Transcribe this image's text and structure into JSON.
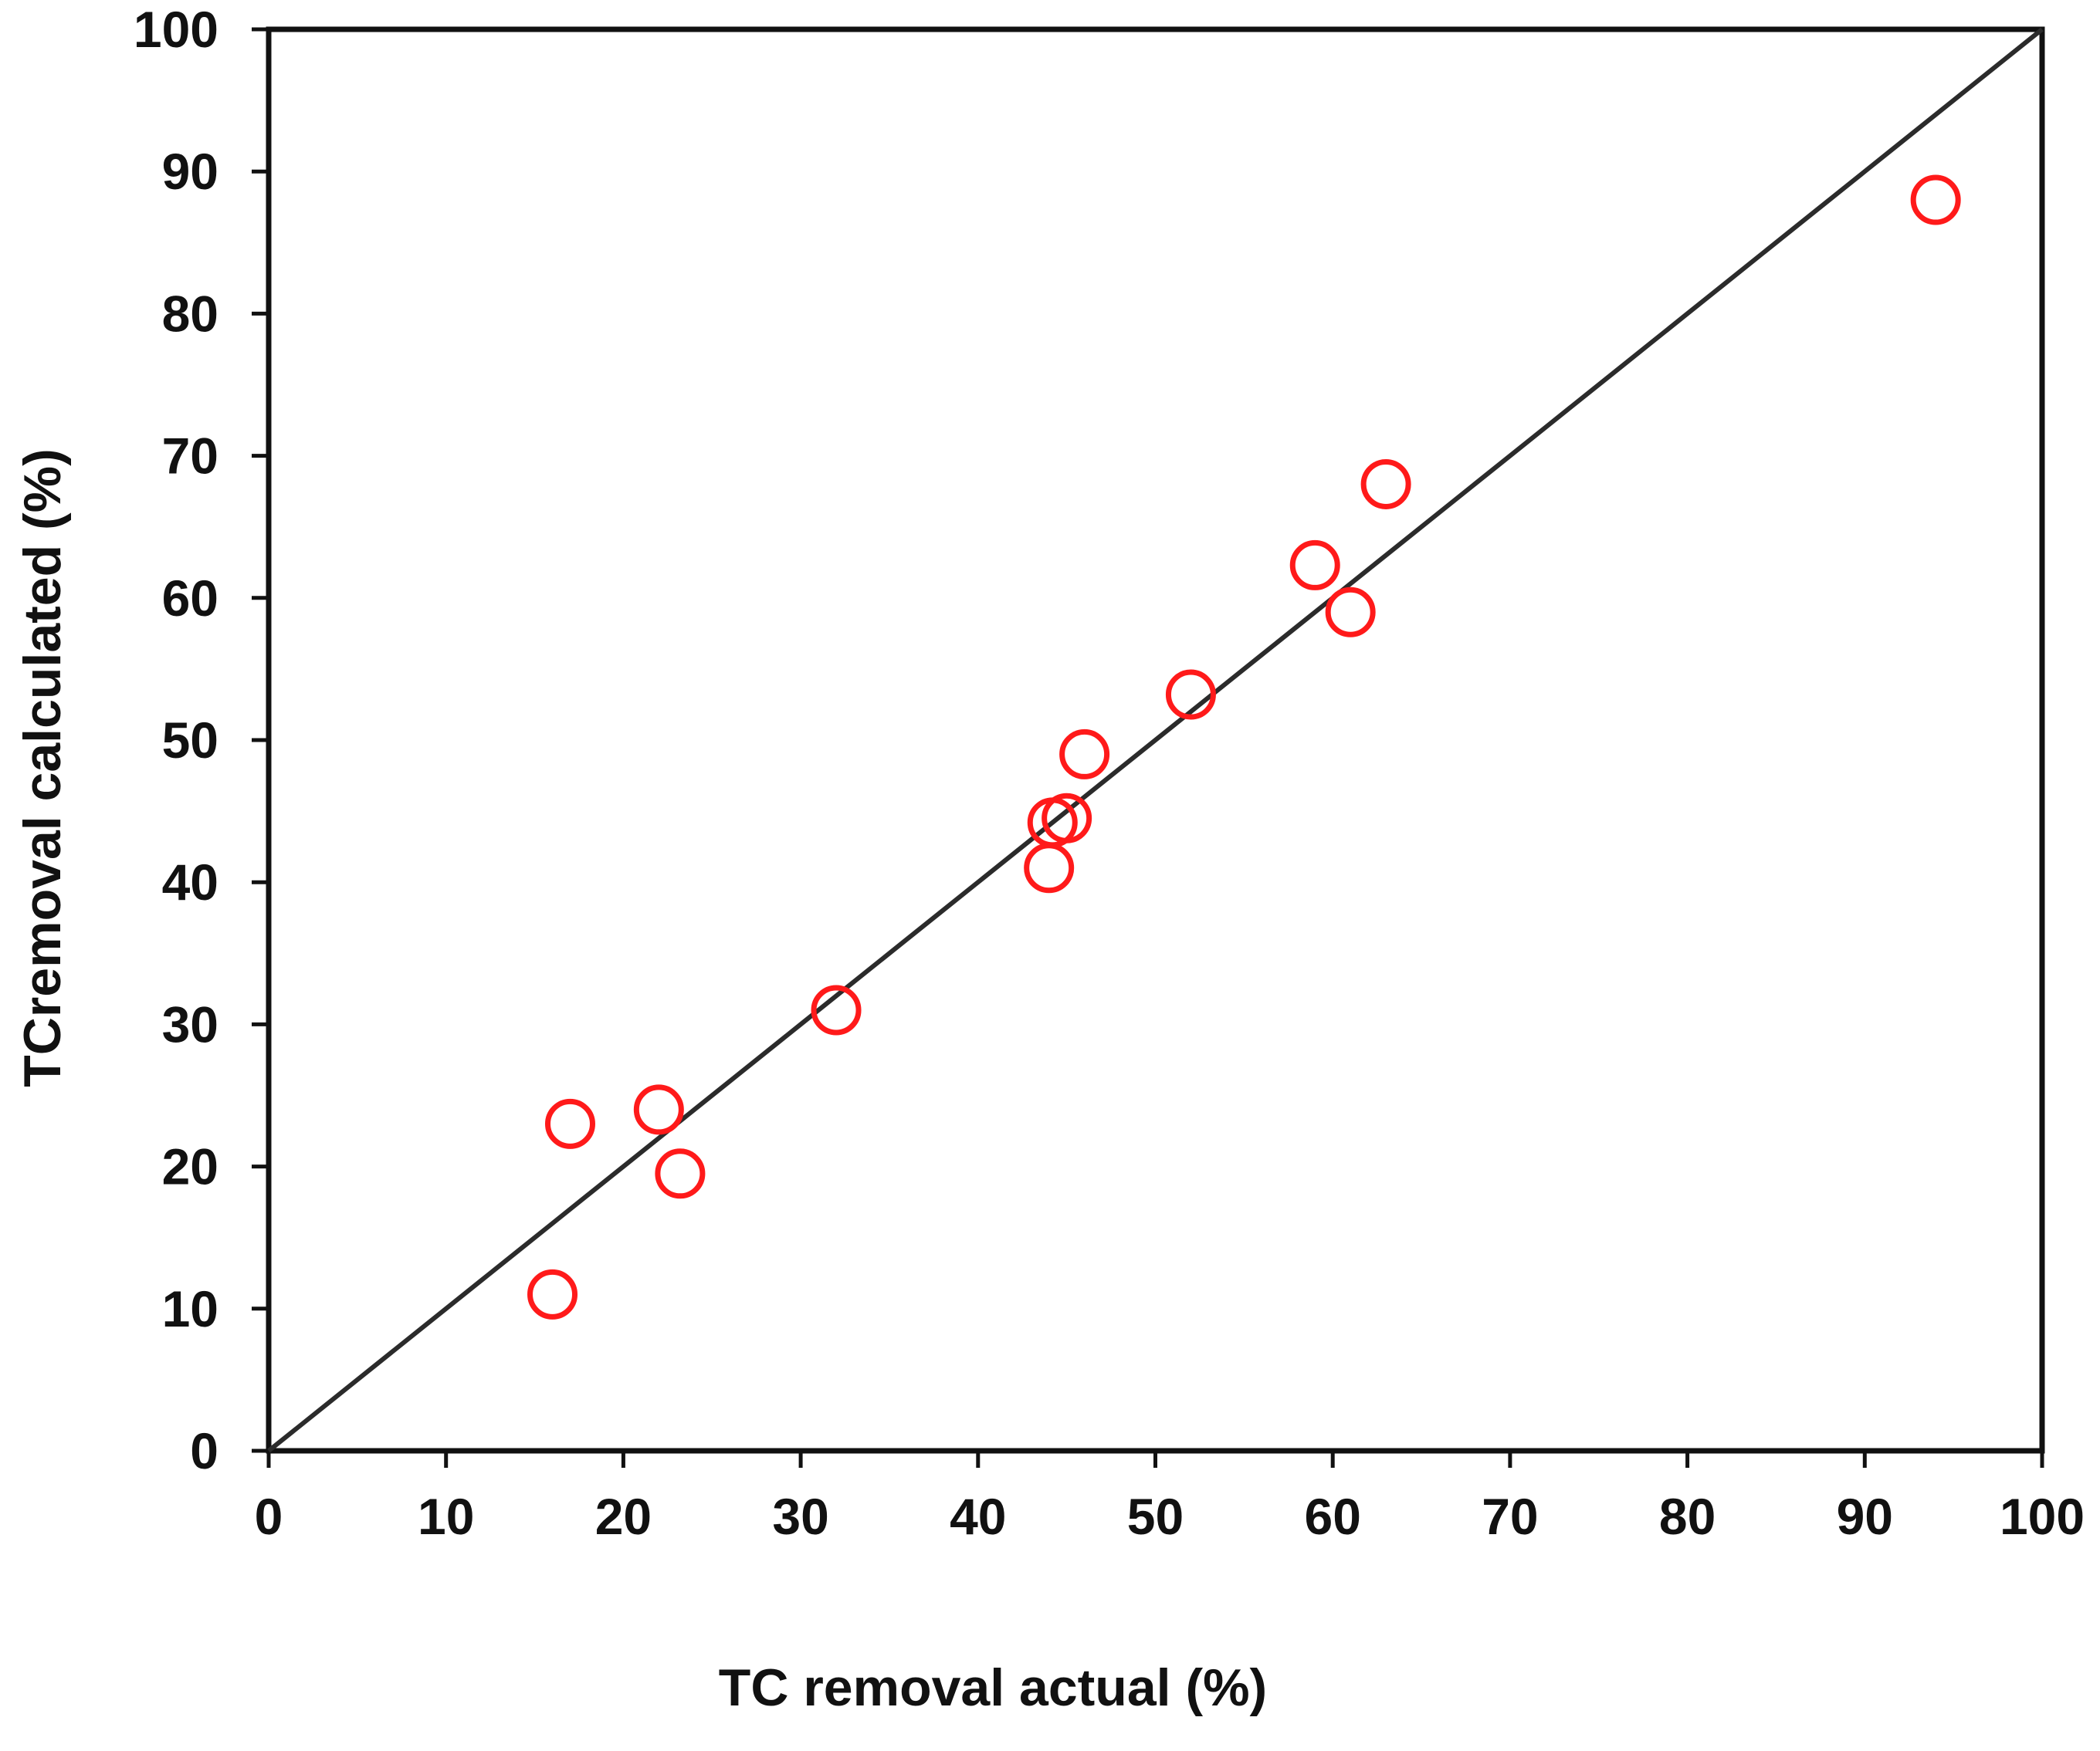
{
  "chart_data": {
    "type": "scatter",
    "title": "",
    "xlabel": "TC removal actual (%)",
    "ylabel": "TCremoval calculated (%)",
    "xlim": [
      0,
      100
    ],
    "ylim": [
      0,
      100
    ],
    "xticks": [
      "0",
      "10",
      "20",
      "30",
      "40",
      "50",
      "60",
      "70",
      "80",
      "90",
      "100"
    ],
    "yticks": [
      "0",
      "10",
      "20",
      "30",
      "40",
      "50",
      "60",
      "70",
      "80",
      "90",
      "100"
    ],
    "grid": false,
    "legend": "none",
    "series": [
      {
        "name": "data points",
        "marker": "open-circle",
        "color": "#ff1a1a",
        "points": [
          {
            "x": 16,
            "y": 11
          },
          {
            "x": 17,
            "y": 23
          },
          {
            "x": 22,
            "y": 24
          },
          {
            "x": 23.2,
            "y": 19.5
          },
          {
            "x": 32,
            "y": 31
          },
          {
            "x": 44,
            "y": 41
          },
          {
            "x": 44.2,
            "y": 44.2
          },
          {
            "x": 45,
            "y": 44.5
          },
          {
            "x": 46,
            "y": 49
          },
          {
            "x": 52,
            "y": 53.2
          },
          {
            "x": 59,
            "y": 62.3
          },
          {
            "x": 61,
            "y": 59
          },
          {
            "x": 63,
            "y": 68
          },
          {
            "x": 94,
            "y": 88
          }
        ]
      },
      {
        "name": "reference line y = x",
        "style": "line",
        "color": "#2b2b2b",
        "points": [
          {
            "x": 0,
            "y": 0
          },
          {
            "x": 6,
            "y": 6
          },
          {
            "x": 12,
            "y": 12
          },
          {
            "x": 14,
            "y": 14
          },
          {
            "x": 16,
            "y": 16
          },
          {
            "x": 18,
            "y": 18
          },
          {
            "x": 20,
            "y": 20
          },
          {
            "x": 22,
            "y": 22
          },
          {
            "x": 24,
            "y": 24
          },
          {
            "x": 26,
            "y": 26
          },
          {
            "x": 30,
            "y": 30
          },
          {
            "x": 34,
            "y": 34
          },
          {
            "x": 36,
            "y": 36
          },
          {
            "x": 38,
            "y": 38
          },
          {
            "x": 42,
            "y": 42
          },
          {
            "x": 46,
            "y": 46
          },
          {
            "x": 48,
            "y": 48
          },
          {
            "x": 50,
            "y": 50
          },
          {
            "x": 54,
            "y": 54
          },
          {
            "x": 56,
            "y": 56
          },
          {
            "x": 58,
            "y": 58
          },
          {
            "x": 60,
            "y": 60
          },
          {
            "x": 62,
            "y": 62
          },
          {
            "x": 64,
            "y": 64
          },
          {
            "x": 66,
            "y": 66
          },
          {
            "x": 68,
            "y": 68
          },
          {
            "x": 70,
            "y": 70
          },
          {
            "x": 72,
            "y": 72
          },
          {
            "x": 76,
            "y": 76
          },
          {
            "x": 78,
            "y": 78
          },
          {
            "x": 80,
            "y": 80
          },
          {
            "x": 82,
            "y": 82
          },
          {
            "x": 84,
            "y": 84
          },
          {
            "x": 86,
            "y": 86
          },
          {
            "x": 88,
            "y": 88
          },
          {
            "x": 90,
            "y": 90
          },
          {
            "x": 92,
            "y": 92
          },
          {
            "x": 96,
            "y": 96
          },
          {
            "x": 98,
            "y": 98
          },
          {
            "x": 100,
            "y": 100
          }
        ]
      }
    ]
  }
}
